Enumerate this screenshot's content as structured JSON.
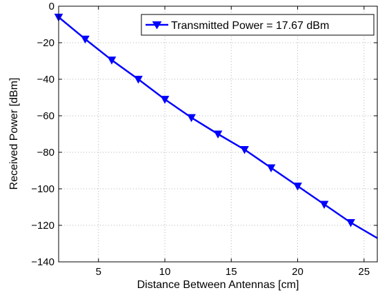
{
  "chart_data": {
    "type": "line",
    "xlabel": "Distance Between Antennas [cm]",
    "ylabel": "Received Power [dBm]",
    "xlim": [
      2,
      26
    ],
    "ylim": [
      -140,
      0
    ],
    "xticks": [
      5,
      10,
      15,
      20,
      25
    ],
    "yticks": [
      0,
      -20,
      -40,
      -60,
      -80,
      -100,
      -120,
      -140
    ],
    "grid": true,
    "legend_position": "top-right",
    "series": [
      {
        "name": "Transmitted Power = 17.67 dBm",
        "color": "#0000ff",
        "marker": "down-triangle",
        "x": [
          2,
          4,
          6,
          8,
          10,
          12,
          14,
          16,
          18,
          20,
          22,
          24,
          26
        ],
        "y": [
          -6,
          -18,
          -29.5,
          -40,
          -51,
          -61,
          -70,
          -78.5,
          -88.5,
          -98.5,
          -108.5,
          -118.5,
          -127
        ]
      }
    ]
  }
}
